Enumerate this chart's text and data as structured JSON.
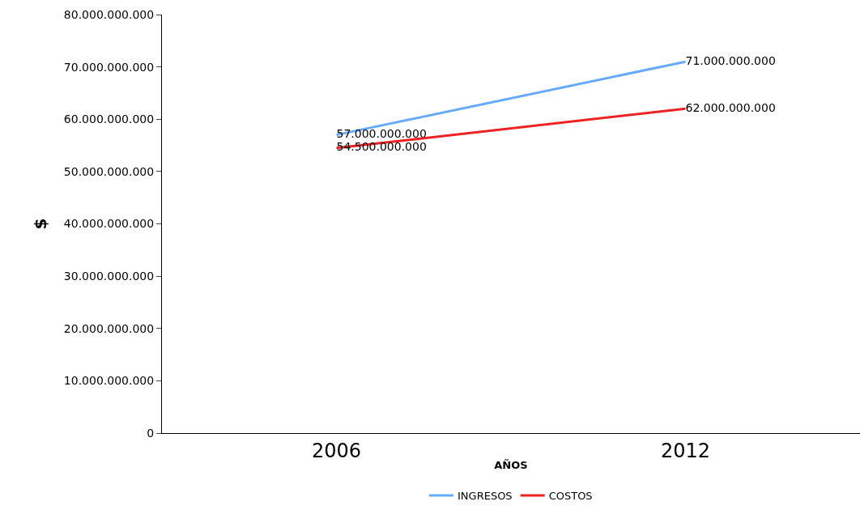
{
  "chart_data": {
    "type": "line",
    "xlabel": "AÑOS",
    "ylabel": "$",
    "categories": [
      "2006",
      "2012"
    ],
    "series": [
      {
        "name": "INGRESOS",
        "color": "#66aaff",
        "values": [
          57000000000,
          71000000000
        ],
        "value_labels": [
          "57.000.000.000",
          "71.000.000.000"
        ]
      },
      {
        "name": "COSTOS",
        "color": "#ee2222",
        "values": [
          54500000000,
          62000000000
        ],
        "value_labels": [
          "54.500.000.000",
          "62.000.000.000"
        ]
      }
    ],
    "ylim": [
      0,
      80000000000
    ],
    "yticks": [
      {
        "value": 0,
        "label": "0"
      },
      {
        "value": 10000000000,
        "label": "10.000.000.000"
      },
      {
        "value": 20000000000,
        "label": "20.000.000.000"
      },
      {
        "value": 30000000000,
        "label": "30.000.000.000"
      },
      {
        "value": 40000000000,
        "label": "40.000.000.000"
      },
      {
        "value": 50000000000,
        "label": "50.000.000.000"
      },
      {
        "value": 60000000000,
        "label": "60.000.000.000"
      },
      {
        "value": 70000000000,
        "label": "70.000.000.000"
      },
      {
        "value": 80000000000,
        "label": "80.000.000.000"
      }
    ],
    "legend": "bottom",
    "marker": "none",
    "line_style": "solid"
  }
}
